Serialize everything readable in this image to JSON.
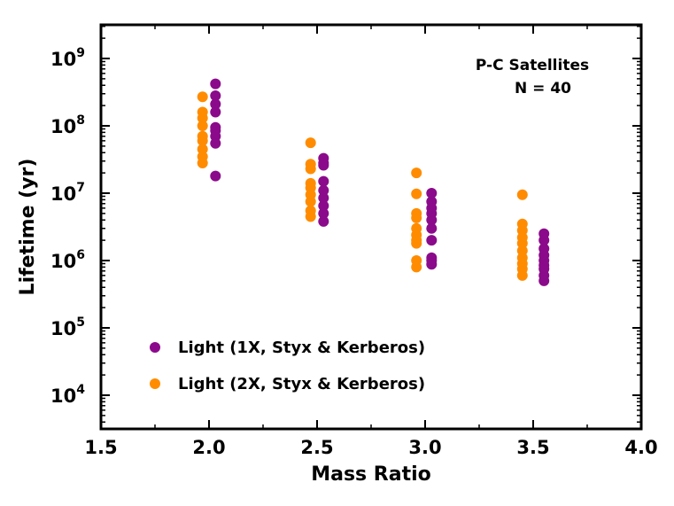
{
  "chart_data": {
    "type": "scatter",
    "title": "",
    "xlabel": "Mass Ratio",
    "ylabel": "Lifetime (yr)",
    "xlim": [
      1.5,
      4.0
    ],
    "ylim_log10": [
      3.5,
      9.5
    ],
    "y_scale": "log",
    "x_ticks": [
      {
        "value": 1.5,
        "label": "1.5"
      },
      {
        "value": 2.0,
        "label": "2.0"
      },
      {
        "value": 2.5,
        "label": "2.5"
      },
      {
        "value": 3.0,
        "label": "3.0"
      },
      {
        "value": 3.5,
        "label": "3.5"
      },
      {
        "value": 4.0,
        "label": "4.0"
      }
    ],
    "y_ticks": [
      {
        "exp": 4,
        "base": "10",
        "sup": "4"
      },
      {
        "exp": 5,
        "base": "10",
        "sup": "5"
      },
      {
        "exp": 6,
        "base": "10",
        "sup": "6"
      },
      {
        "exp": 7,
        "base": "10",
        "sup": "7"
      },
      {
        "exp": 8,
        "base": "10",
        "sup": "8"
      },
      {
        "exp": 9,
        "base": "10",
        "sup": "9"
      }
    ],
    "annotation": [
      "P-C Satellites",
      "N = 40"
    ],
    "legend_position": "lower-left",
    "series": [
      {
        "name": "Light (1X, Styx & Kerberos)",
        "color": "#8b0a8b",
        "points": [
          [
            2.03,
            420000000.0
          ],
          [
            2.03,
            280000000.0
          ],
          [
            2.03,
            210000000.0
          ],
          [
            2.03,
            160000000.0
          ],
          [
            2.03,
            95000000.0
          ],
          [
            2.03,
            85000000.0
          ],
          [
            2.03,
            70000000.0
          ],
          [
            2.03,
            55000000.0
          ],
          [
            2.03,
            18000000.0
          ],
          [
            2.53,
            33000000.0
          ],
          [
            2.53,
            28000000.0
          ],
          [
            2.53,
            26000000.0
          ],
          [
            2.53,
            15000000.0
          ],
          [
            2.53,
            11000000.0
          ],
          [
            2.53,
            8500000.0
          ],
          [
            2.53,
            6500000.0
          ],
          [
            2.53,
            5000000.0
          ],
          [
            2.53,
            3800000.0
          ],
          [
            3.03,
            10000000.0
          ],
          [
            3.03,
            7500000.0
          ],
          [
            3.03,
            6000000.0
          ],
          [
            3.03,
            5000000.0
          ],
          [
            3.03,
            4000000.0
          ],
          [
            3.03,
            3000000.0
          ],
          [
            3.03,
            2000000.0
          ],
          [
            3.03,
            1100000.0
          ],
          [
            3.03,
            1000000.0
          ],
          [
            3.03,
            880000.0
          ],
          [
            3.55,
            2500000.0
          ],
          [
            3.55,
            2000000.0
          ],
          [
            3.55,
            1500000.0
          ],
          [
            3.55,
            1200000.0
          ],
          [
            3.55,
            1000000.0
          ],
          [
            3.55,
            850000.0
          ],
          [
            3.55,
            750000.0
          ],
          [
            3.55,
            600000.0
          ],
          [
            3.55,
            500000.0
          ]
        ]
      },
      {
        "name": "Light (2X, Styx & Kerberos)",
        "color": "#ff8c00",
        "points": [
          [
            1.97,
            270000000.0
          ],
          [
            1.97,
            160000000.0
          ],
          [
            1.97,
            130000000.0
          ],
          [
            1.97,
            100000000.0
          ],
          [
            1.97,
            70000000.0
          ],
          [
            1.97,
            60000000.0
          ],
          [
            1.97,
            45000000.0
          ],
          [
            1.97,
            35000000.0
          ],
          [
            1.97,
            28000000.0
          ],
          [
            2.47,
            56000000.0
          ],
          [
            2.47,
            27000000.0
          ],
          [
            2.47,
            23000000.0
          ],
          [
            2.47,
            14000000.0
          ],
          [
            2.47,
            12000000.0
          ],
          [
            2.47,
            9500000.0
          ],
          [
            2.47,
            7500000.0
          ],
          [
            2.47,
            5500000.0
          ],
          [
            2.47,
            4500000.0
          ],
          [
            2.96,
            20000000.0
          ],
          [
            2.96,
            9800000.0
          ],
          [
            2.96,
            5000000.0
          ],
          [
            2.96,
            4300000.0
          ],
          [
            2.96,
            3000000.0
          ],
          [
            2.96,
            2400000.0
          ],
          [
            2.96,
            2000000.0
          ],
          [
            2.96,
            1800000.0
          ],
          [
            2.96,
            1000000.0
          ],
          [
            2.96,
            800000.0
          ],
          [
            3.45,
            9500000.0
          ],
          [
            3.45,
            3500000.0
          ],
          [
            3.45,
            2800000.0
          ],
          [
            3.45,
            2200000.0
          ],
          [
            3.45,
            1800000.0
          ],
          [
            3.45,
            1400000.0
          ],
          [
            3.45,
            1100000.0
          ],
          [
            3.45,
            900000.0
          ],
          [
            3.45,
            750000.0
          ],
          [
            3.45,
            600000.0
          ]
        ]
      }
    ]
  }
}
